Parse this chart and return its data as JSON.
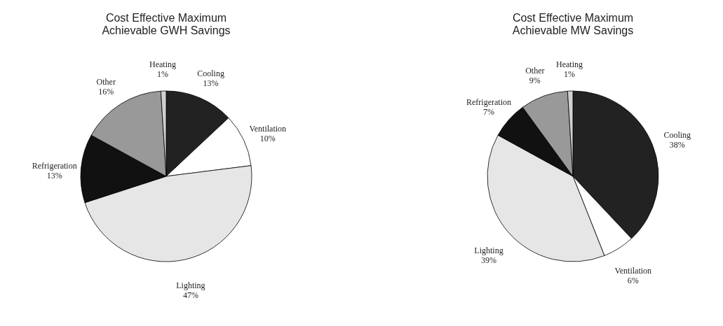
{
  "chart_data": [
    {
      "type": "pie",
      "title": "Cost Effective Maximum Achievable GWH Savings",
      "categories": [
        "Cooling",
        "Ventilation",
        "Lighting",
        "Refrigeration",
        "Other",
        "Heating"
      ],
      "values": [
        13,
        10,
        47,
        13,
        16,
        1
      ],
      "value_labels": [
        "13%",
        "10%",
        "47%",
        "13%",
        "16%",
        "1%"
      ],
      "colors": [
        "#222222",
        "#ffffff",
        "#e6e6e6",
        "#111111",
        "#999999",
        "#d0d0d0"
      ],
      "legend": false
    },
    {
      "type": "pie",
      "title": "Cost Effective Maximum Achievable MW Savings",
      "categories": [
        "Cooling",
        "Ventilation",
        "Lighting",
        "Refrigeration",
        "Other",
        "Heating"
      ],
      "values": [
        38,
        6,
        39,
        7,
        9,
        1
      ],
      "value_labels": [
        "38%",
        "6%",
        "39%",
        "7%",
        "9%",
        "1%"
      ],
      "colors": [
        "#222222",
        "#ffffff",
        "#e6e6e6",
        "#111111",
        "#999999",
        "#d0d0d0"
      ],
      "legend": false
    }
  ]
}
